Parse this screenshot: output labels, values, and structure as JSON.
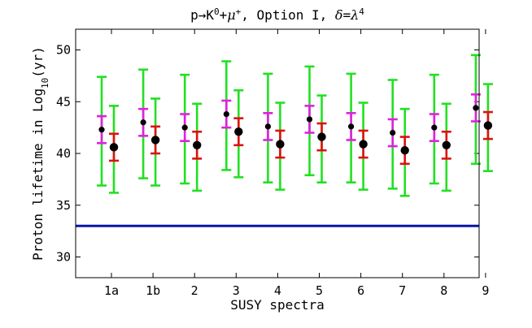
{
  "chart_data": {
    "type": "scatter",
    "title": {
      "parts": [
        {
          "text": "p→K",
          "style": "mono"
        },
        {
          "text": "0",
          "style": "sup"
        },
        {
          "text": "+",
          "style": "mono"
        },
        {
          "text": "μ",
          "style": "italic"
        },
        {
          "text": "+",
          "style": "sup"
        },
        {
          "text": ", Option I, ",
          "style": "mono"
        },
        {
          "text": "δ",
          "style": "italic"
        },
        {
          "text": "=",
          "style": "mono"
        },
        {
          "text": "λ",
          "style": "italic"
        },
        {
          "text": "4",
          "style": "sup"
        }
      ]
    },
    "xlabel": "SUSY spectra",
    "ylabel": {
      "parts": [
        {
          "text": "Proton lifetime in Log",
          "style": "mono"
        },
        {
          "text": "10",
          "style": "sub"
        },
        {
          "text": "(yr)",
          "style": "mono"
        }
      ]
    },
    "categories": [
      "1a",
      "1b",
      "2",
      "3",
      "4",
      "5",
      "6",
      "7",
      "8",
      "9"
    ],
    "yticks": [
      30,
      35,
      40,
      45,
      50
    ],
    "ylim": [
      28,
      52
    ],
    "reference_line": {
      "y": 33,
      "color": "#0a14a8"
    },
    "colors": {
      "green": "#22e022",
      "magenta": "#e020e0",
      "red": "#e01010",
      "point": "#000000"
    },
    "series": [
      {
        "values": [
          42.3,
          43.0,
          42.5,
          43.8,
          42.6,
          43.3,
          42.6,
          42.0,
          42.5,
          44.4
        ],
        "magenta_low": [
          41.0,
          41.7,
          41.2,
          42.5,
          41.3,
          42.0,
          41.3,
          40.7,
          41.2,
          43.1
        ],
        "magenta_high": [
          43.6,
          44.3,
          43.8,
          45.1,
          43.9,
          44.6,
          43.9,
          43.3,
          43.8,
          45.7
        ],
        "green_low": [
          36.9,
          37.6,
          37.1,
          38.4,
          37.2,
          37.9,
          37.2,
          36.6,
          37.1,
          39.0
        ],
        "green_high": [
          47.4,
          48.1,
          47.6,
          48.9,
          47.7,
          48.4,
          47.7,
          47.1,
          47.6,
          49.5
        ]
      },
      {
        "values": [
          40.6,
          41.3,
          40.8,
          42.1,
          40.9,
          41.6,
          40.9,
          40.3,
          40.8,
          42.7
        ],
        "red_low": [
          39.3,
          40.0,
          39.5,
          40.8,
          39.6,
          40.3,
          39.6,
          39.0,
          39.5,
          41.4
        ],
        "red_high": [
          41.9,
          42.6,
          42.1,
          43.4,
          42.2,
          42.9,
          42.2,
          41.6,
          42.1,
          44.0
        ],
        "green_low": [
          36.2,
          36.9,
          36.4,
          37.7,
          36.5,
          37.2,
          36.5,
          35.9,
          36.4,
          38.3
        ],
        "green_high": [
          44.6,
          45.3,
          44.8,
          46.1,
          44.9,
          45.6,
          44.9,
          44.3,
          44.8,
          46.7
        ]
      }
    ]
  }
}
